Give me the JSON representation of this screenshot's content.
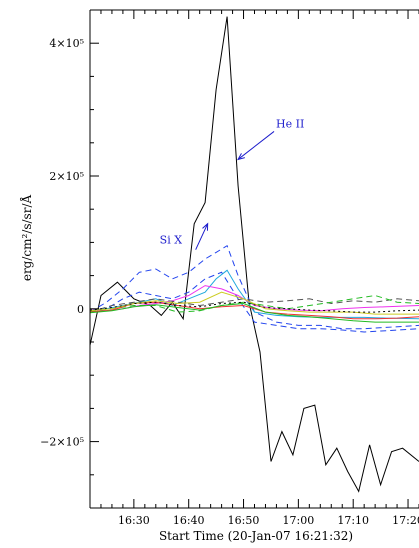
{
  "chart_data": {
    "type": "line",
    "xlabel": "Start Time (20-Jan-07 16:21:32)",
    "ylabel": "erg/cm²/s/sr/Å",
    "x_tick_labels": [
      "16:30",
      "16:40",
      "16:50",
      "17:00",
      "17:10",
      "17:20"
    ],
    "x_tick_minutes": [
      30,
      40,
      50,
      60,
      70,
      80
    ],
    "y_tick_labels": [
      "4×10⁵",
      "2×10⁵",
      "0",
      "−2×10⁵"
    ],
    "y_tick_values": [
      400000,
      200000,
      0,
      -200000
    ],
    "xlim_minutes": [
      22,
      82
    ],
    "ylim": [
      -300000,
      450000
    ],
    "grid": false,
    "annotations": [
      {
        "text": "He II",
        "color": "#1c1ccc",
        "x": 49,
        "y": 240000
      },
      {
        "text": "Si X",
        "color": "#1c1ccc",
        "x": 42,
        "y": 95000
      }
    ],
    "series": [
      {
        "color": "#000000",
        "dash": "none",
        "x": [
          22,
          24,
          27,
          30,
          33,
          35,
          37,
          39,
          41,
          43,
          45,
          47,
          49,
          51,
          53,
          55,
          57,
          59,
          61,
          63,
          65,
          67,
          69,
          71,
          73,
          75,
          77,
          79,
          82
        ],
        "y": [
          -55000,
          20000,
          40000,
          15000,
          5000,
          -10000,
          10000,
          -15000,
          128000,
          160000,
          330000,
          440000,
          185000,
          10000,
          -65000,
          -230000,
          -185000,
          -220000,
          -150000,
          -145000,
          -235000,
          -210000,
          -245000,
          -275000,
          -205000,
          -265000,
          -215000,
          -210000,
          -230000
        ]
      },
      {
        "color": "#2244ee",
        "dash": "dashed",
        "x": [
          22,
          25,
          28,
          31,
          34,
          37,
          40,
          43,
          45,
          47,
          49,
          52,
          56,
          60,
          64,
          68,
          72,
          76,
          82
        ],
        "y": [
          -5000,
          10000,
          30000,
          55000,
          60000,
          45000,
          55000,
          75000,
          85000,
          95000,
          50000,
          -5000,
          -20000,
          -25000,
          -25000,
          -30000,
          -30000,
          -28000,
          -25000
        ]
      },
      {
        "color": "#2244ee",
        "dash": "dashed",
        "x": [
          22,
          25,
          28,
          31,
          34,
          37,
          40,
          43,
          46,
          49,
          52,
          56,
          60,
          64,
          68,
          72,
          76,
          82
        ],
        "y": [
          -5000,
          0,
          15000,
          25000,
          20000,
          15000,
          25000,
          45000,
          55000,
          15000,
          -20000,
          -25000,
          -30000,
          -30000,
          -32000,
          -35000,
          -33000,
          -30000
        ]
      },
      {
        "color": "#22aadd",
        "dash": "none",
        "x": [
          22,
          25,
          28,
          31,
          34,
          37,
          40,
          43,
          45,
          47,
          49,
          52,
          56,
          60,
          64,
          68,
          72,
          76,
          82
        ],
        "y": [
          -3000,
          0,
          5000,
          10000,
          15000,
          5000,
          15000,
          25000,
          45000,
          58000,
          30000,
          -5000,
          -10000,
          -12000,
          -13000,
          -13000,
          -13000,
          -14000,
          -15000
        ]
      },
      {
        "color": "#ee33ee",
        "dash": "none",
        "x": [
          22,
          25,
          28,
          31,
          34,
          37,
          40,
          43,
          46,
          49,
          52,
          56,
          60,
          64,
          68,
          72,
          76,
          82
        ],
        "y": [
          -2000,
          -3000,
          0,
          5000,
          8000,
          12000,
          20000,
          35000,
          30000,
          20000,
          5000,
          0,
          -2000,
          -3000,
          0,
          2000,
          3000,
          5000
        ]
      },
      {
        "color": "#555555",
        "dash": "dashed",
        "x": [
          22,
          26,
          30,
          34,
          38,
          42,
          46,
          50,
          54,
          58,
          62,
          66,
          70,
          74,
          78,
          82
        ],
        "y": [
          -5000,
          5000,
          10000,
          15000,
          10000,
          5000,
          10000,
          15000,
          10000,
          12000,
          15000,
          8000,
          12000,
          10000,
          15000,
          12000
        ]
      },
      {
        "color": "#22bb22",
        "dash": "dashed",
        "x": [
          22,
          26,
          30,
          34,
          38,
          42,
          46,
          50,
          54,
          58,
          62,
          66,
          70,
          74,
          78,
          82
        ],
        "y": [
          -4000,
          0,
          5000,
          5000,
          -5000,
          -3000,
          5000,
          10000,
          5000,
          0,
          5000,
          10000,
          15000,
          20000,
          10000,
          8000
        ]
      },
      {
        "color": "#ee3333",
        "dash": "none",
        "x": [
          22,
          26,
          30,
          34,
          38,
          42,
          46,
          50,
          54,
          58,
          62,
          66,
          70,
          74,
          78,
          82
        ],
        "y": [
          -5000,
          -2000,
          8000,
          10000,
          5000,
          0,
          3000,
          5000,
          -5000,
          -8000,
          -10000,
          -12000,
          -15000,
          -15000,
          -14000,
          -12000
        ]
      },
      {
        "color": "#22bb22",
        "dash": "none",
        "x": [
          22,
          26,
          30,
          34,
          38,
          42,
          46,
          50,
          54,
          58,
          62,
          66,
          70,
          74,
          78,
          82
        ],
        "y": [
          -6000,
          -3000,
          3000,
          6000,
          2000,
          -2000,
          5000,
          8000,
          -5000,
          -10000,
          -12000,
          -15000,
          -18000,
          -20000,
          -20000,
          -20000
        ]
      },
      {
        "color": "#cccc22",
        "dash": "none",
        "x": [
          22,
          26,
          30,
          34,
          38,
          42,
          46,
          50,
          54,
          58,
          62,
          66,
          70,
          74,
          78,
          82
        ],
        "y": [
          -3000,
          0,
          8000,
          12000,
          8000,
          10000,
          25000,
          15000,
          0,
          -3000,
          -5000,
          -5000,
          -5000,
          -8000,
          -8000,
          -8000
        ]
      },
      {
        "color": "#000000",
        "dash": "dotted",
        "x": [
          22,
          26,
          30,
          34,
          38,
          42,
          46,
          50,
          54,
          58,
          62,
          66,
          70,
          74,
          78,
          82
        ],
        "y": [
          -2000,
          2000,
          8000,
          10000,
          5000,
          3000,
          8000,
          10000,
          2000,
          0,
          -2000,
          -3000,
          -5000,
          -5000,
          -3000,
          -2000
        ]
      }
    ]
  }
}
